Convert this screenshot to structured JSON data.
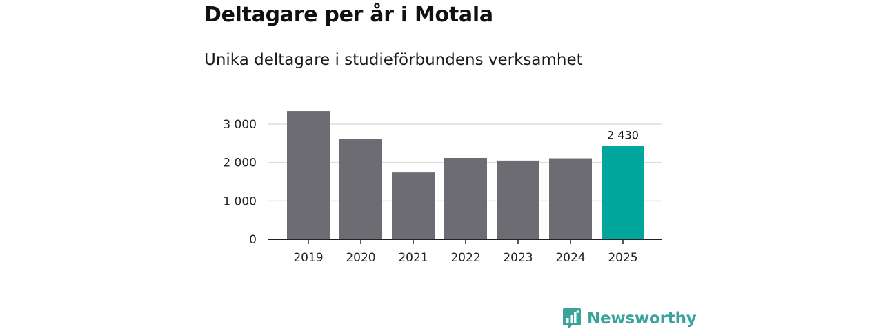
{
  "chart_data": {
    "type": "bar",
    "title": "Deltagare per år i Motala",
    "subtitle": "Unika deltagare i studieförbundens verksamhet",
    "categories": [
      "2019",
      "2020",
      "2021",
      "2022",
      "2023",
      "2024",
      "2025"
    ],
    "values": [
      3340,
      2610,
      1740,
      2120,
      2050,
      2110,
      2430
    ],
    "ylim": [
      0,
      3000
    ],
    "yticks": [
      0,
      1000,
      2000,
      3000
    ],
    "ytick_labels": [
      "0",
      "1 000",
      "2 000",
      "3 000"
    ],
    "highlight_index": 6,
    "data_labels": [
      {
        "index": 6,
        "text": "2 430"
      }
    ],
    "xlabel": "",
    "ylabel": "",
    "grid": true,
    "colors": {
      "bar": "#6d6c72",
      "highlight": "#00a59b",
      "grid": "#dddddd",
      "axis": "#222222"
    }
  },
  "branding": {
    "name": "Newsworthy",
    "logo_icon": "newsworthy-logo-icon",
    "color": "#3aa39a"
  }
}
